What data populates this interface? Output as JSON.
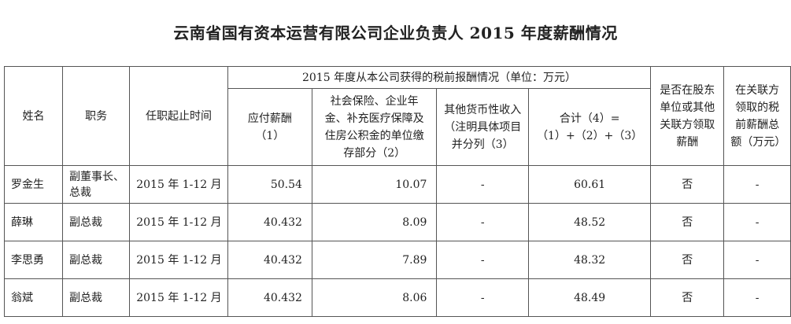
{
  "title": "云南省国有资本运营有限公司企业负责人 2015 年度薪酬情况",
  "headers": {
    "name": "姓名",
    "position": "职务",
    "term": "任职起止时间",
    "group": "2015 年度从本公司获得的税前报酬情况（单位：万元）",
    "salary": "应付薪酬（1）",
    "social": "社会保险、企业年金、补充医疗保障及住房公积金的单位缴存部分（2）",
    "other": "其他货币性收入（注明具体项目并分列（3）",
    "total": "合计（4）=（1）+（2）+（3）",
    "related_flag": "是否在股东单位或其他关联方领取薪酬",
    "related_amount": "在关联方领取的税前薪酬总额（万元）"
  },
  "rows": [
    {
      "name": "罗金生",
      "position": "副董事长、总裁",
      "term": "2015 年 1-12 月",
      "salary": "50.54",
      "social": "10.07",
      "other": "-",
      "total": "60.61",
      "related_flag": "否",
      "related_amount": "-"
    },
    {
      "name": "薛琳",
      "position": "副总裁",
      "term": "2015 年 1-12 月",
      "salary": "40.432",
      "social": "8.09",
      "other": "-",
      "total": "48.52",
      "related_flag": "否",
      "related_amount": "-"
    },
    {
      "name": "李思勇",
      "position": "副总裁",
      "term": "2015 年 1-12 月",
      "salary": "40.432",
      "social": "7.89",
      "other": "-",
      "total": "48.32",
      "related_flag": "否",
      "related_amount": "-"
    },
    {
      "name": "翁斌",
      "position": "副总裁",
      "term": "2015 年 1-12 月",
      "salary": "40.432",
      "social": "8.06",
      "other": "-",
      "total": "48.49",
      "related_flag": "否",
      "related_amount": "-"
    }
  ]
}
